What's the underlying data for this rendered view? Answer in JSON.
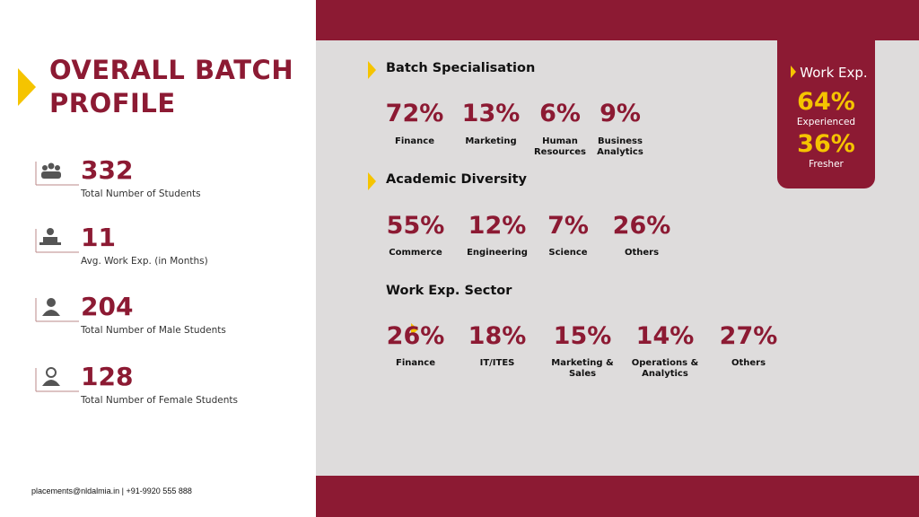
{
  "header": {
    "title": "OVERALL BATCH PROFILE"
  },
  "stats": [
    {
      "value": "332",
      "label": "Total Number of Students"
    },
    {
      "value": "11",
      "label": "Avg. Work Exp. (in Months)"
    },
    {
      "value": "204",
      "label": "Total Number of Male Students"
    },
    {
      "value": "128",
      "label": "Total Number of Female Students"
    }
  ],
  "footer": "placements@nldalmia.in | +91-9920 555 888",
  "sections": [
    {
      "title": "Batch Specialisation",
      "items": [
        {
          "value": "72%",
          "label": "Finance"
        },
        {
          "value": "13%",
          "label": "Marketing"
        },
        {
          "value": "6%",
          "label": "Human Resources"
        },
        {
          "value": "9%",
          "label": "Business Analytics"
        }
      ]
    },
    {
      "title": "Academic Diversity",
      "items": [
        {
          "value": "55%",
          "label": "Commerce"
        },
        {
          "value": "12%",
          "label": "Engineering"
        },
        {
          "value": "7%",
          "label": "Science"
        },
        {
          "value": "26%",
          "label": "Others"
        }
      ]
    },
    {
      "title": "Work Exp. Sector",
      "items": [
        {
          "value": "26%",
          "label": "Finance"
        },
        {
          "value": "18%",
          "label": "IT/ITES"
        },
        {
          "value": "15%",
          "label": "Marketing & Sales"
        },
        {
          "value": "14%",
          "label": "Operations & Analytics"
        },
        {
          "value": "27%",
          "label": "Others"
        }
      ]
    }
  ],
  "work_exp": {
    "title": "Work Exp.",
    "items": [
      {
        "value": "64%",
        "label": "Experienced"
      },
      {
        "value": "36%",
        "label": "Fresher"
      }
    ]
  }
}
